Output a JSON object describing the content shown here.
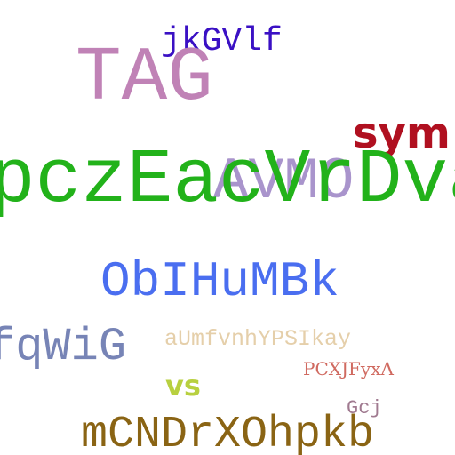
{
  "words": {
    "jkgvlf": {
      "text": "jkGVlf",
      "color": "#3a10c4"
    },
    "tag": {
      "text": "TAG",
      "color": "#c082b6"
    },
    "sym": {
      "text": "sym",
      "color": "#b01020"
    },
    "avmo": {
      "text": "AVMO",
      "color": "#a994cc"
    },
    "main": {
      "text": "pczEacVrDva",
      "color": "#22b21a"
    },
    "obl": {
      "text": "ObIHuMBk",
      "color": "#4a6ef0"
    },
    "fqwig": {
      "text": "fqWiG",
      "color": "#7784b6"
    },
    "aum": {
      "text": "aUmfvnhYPSIkay",
      "color": "#e5cfaa"
    },
    "pcx": {
      "text": "PCXJFyxA",
      "color": "#d06a60"
    },
    "vs": {
      "text": "vs",
      "color": "#b8d040"
    },
    "gcj": {
      "text": "Gcj",
      "color": "#a07a90"
    },
    "mcnd": {
      "text": "mCNDrXOhpkb",
      "color": "#8a6414"
    }
  }
}
